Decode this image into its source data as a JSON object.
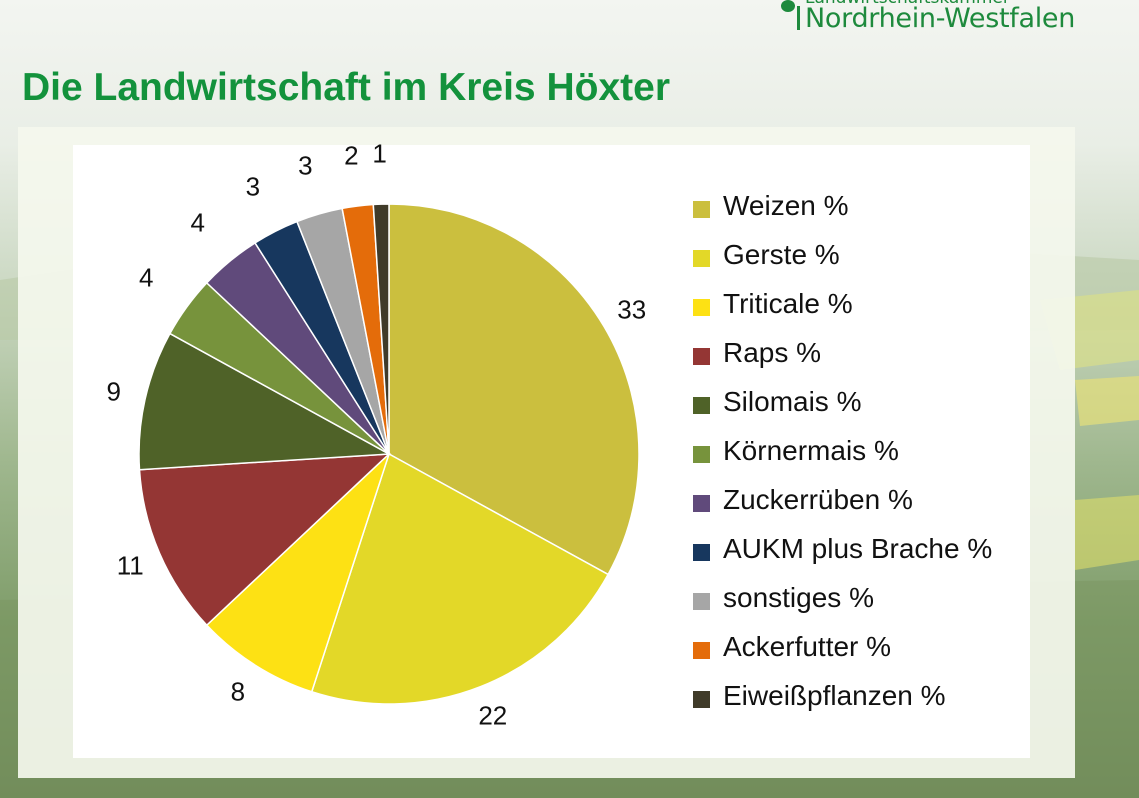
{
  "logo": {
    "top_text": "Landwirtschaftskammer",
    "main_text": "Nordrhein-Westfalen",
    "color": "#1e8a3d"
  },
  "page_title": "Die Landwirtschaft im Kreis Höxter",
  "title_color": "#13923c",
  "chart_data": {
    "type": "pie",
    "title": "",
    "start": "12 o'clock, clockwise",
    "legend_position": "right",
    "slices": [
      {
        "name": "Weizen %",
        "value": 33,
        "label": "33",
        "color": "#cbbf3e"
      },
      {
        "name": "Gerste %",
        "value": 22,
        "label": "22",
        "color": "#e3d828"
      },
      {
        "name": "Triticale %",
        "value": 8,
        "label": "8",
        "color": "#fde114"
      },
      {
        "name": "Raps %",
        "value": 11,
        "label": "11",
        "color": "#943634"
      },
      {
        "name": "Silomais %",
        "value": 9,
        "label": "9",
        "color": "#4f6228"
      },
      {
        "name": "Körnermais %",
        "value": 4,
        "label": "4",
        "color": "#77933c"
      },
      {
        "name": "Zuckerrüben %",
        "value": 4,
        "label": "4",
        "color": "#604a7b"
      },
      {
        "name": "AUKM plus Brache %",
        "value": 3,
        "label": "3",
        "color": "#17375e"
      },
      {
        "name": "sonstiges %",
        "value": 3,
        "label": "3",
        "color": "#a6a6a6"
      },
      {
        "name": "Ackerfutter %",
        "value": 2,
        "label": "2",
        "color": "#e46c0a"
      },
      {
        "name": "Eiweißpflanzen %",
        "value": 1,
        "label": "1",
        "color": "#403b29"
      }
    ]
  }
}
